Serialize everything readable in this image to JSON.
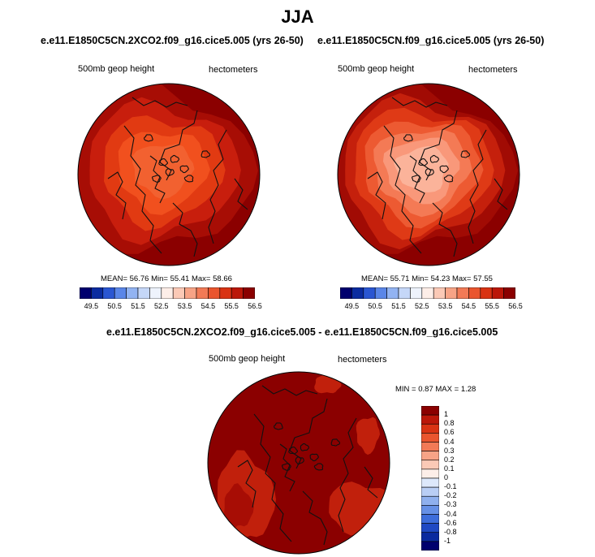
{
  "title": "JJA",
  "panels": [
    {
      "case_title": "e.e11.E1850C5CN.2XCO2.f09_g16.cice5.005 (yrs 26-50)",
      "left_label": "500mb geop height",
      "right_label": "hectometers",
      "stats": {
        "mean_label": "MEAN=",
        "mean": "56.76",
        "min_label": "Min=",
        "min": "55.41",
        "max_label": "Max=",
        "max": "58.66"
      },
      "fill_levels": [
        "#f26130",
        "#f1501e",
        "#e13a12",
        "#c81e0d",
        "#a70d05",
        "#8b0000"
      ]
    },
    {
      "case_title": "e.e11.E1850C5CN.f09_g16.cice5.005 (yrs 26-50)",
      "left_label": "500mb geop height",
      "right_label": "hectometers",
      "stats": {
        "mean_label": "MEAN=",
        "mean": "55.71",
        "min_label": "Min=",
        "min": "54.23",
        "max_label": "Max=",
        "max": "57.55"
      },
      "fill_levels": [
        "#fbb39a",
        "#f9987a",
        "#f47a55",
        "#ed5a32",
        "#df3a16",
        "#c5200c",
        "#a10b04",
        "#8b0000"
      ]
    }
  ],
  "horizontal_colorbar": {
    "colors": [
      "#00006e",
      "#0b2ca0",
      "#2a56d2",
      "#5a86e8",
      "#92b3f2",
      "#c5d7f8",
      "#eef3fc",
      "#fdeee8",
      "#fbc9b6",
      "#f7a386",
      "#f27a56",
      "#ea552e",
      "#d93313",
      "#bb1709",
      "#8b0000"
    ],
    "tick_labels": [
      "49.5",
      "50.5",
      "51.5",
      "52.5",
      "53.5",
      "54.5",
      "55.5",
      "56.5"
    ]
  },
  "difference": {
    "title": "e.e11.E1850C5CN.2XCO2.f09_g16.cice5.005 - e.e11.E1850C5CN.f09_g16.cice5.005",
    "left_label": "500mb geop height",
    "right_label": "hectometers",
    "stats": {
      "min_label": "MIN =",
      "min": "0.87",
      "max_label": "MAX =",
      "max": "1.28"
    },
    "colorbar": {
      "colors": [
        "#8b0000",
        "#bb1709",
        "#d93313",
        "#ea552e",
        "#f27a56",
        "#f7a386",
        "#fbc9b6",
        "#fdeee8",
        "#dde8fb",
        "#b9cef5",
        "#8fb0ee",
        "#6690e6",
        "#3d6ddb",
        "#1f49c4",
        "#0a2a9f",
        "#00006e"
      ],
      "tick_labels": [
        "1",
        "0.8",
        "0.6",
        "0.4",
        "0.3",
        "0.2",
        "0.1",
        "0",
        "-0.1",
        "-0.2",
        "-0.3",
        "-0.4",
        "-0.6",
        "-0.8",
        "-1"
      ]
    }
  }
}
